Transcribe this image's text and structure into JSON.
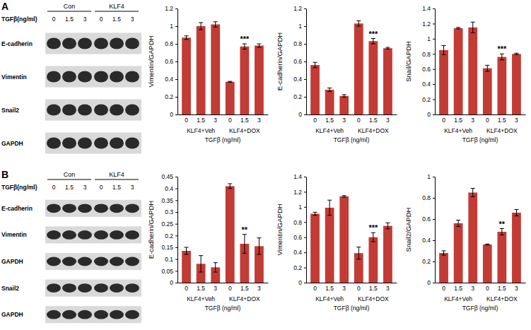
{
  "chart_data": [
    {
      "type": "bar",
      "y_label": "Vimentin/GAPDH",
      "x_label": "TGFβ (ng/ml)",
      "categories": [
        "0",
        "1.5",
        "3",
        "0",
        "1.5",
        "3"
      ],
      "group_labels": [
        "KLF4+Veh",
        "KLF4+DOX"
      ],
      "values": [
        0.87,
        1.0,
        1.02,
        0.37,
        0.77,
        0.78
      ],
      "errors": [
        0.02,
        0.04,
        0.03,
        0.005,
        0.03,
        0.02
      ],
      "color": "#c23b35",
      "ylim": [
        0,
        1.2
      ],
      "yticks": [
        0,
        0.2,
        0.4,
        0.6,
        0.8,
        1,
        1.2
      ],
      "grid": false,
      "annotations": [
        {
          "text": "***",
          "index": 4
        }
      ]
    },
    {
      "type": "bar",
      "y_label": "E-cadherin/GAPDH",
      "x_label": "TGFβ (ng/ml)",
      "categories": [
        "0",
        "1.5",
        "3",
        "0",
        "1.5",
        "3"
      ],
      "group_labels": [
        "KLF4+Veh",
        "KLF4+DOX"
      ],
      "values": [
        0.56,
        0.28,
        0.21,
        1.03,
        0.83,
        0.75
      ],
      "errors": [
        0.03,
        0.02,
        0.015,
        0.03,
        0.03,
        0.01
      ],
      "color": "#c23b35",
      "ylim": [
        0,
        1.2
      ],
      "yticks": [
        0,
        0.2,
        0.4,
        0.6,
        0.8,
        1,
        1.2
      ],
      "grid": false,
      "annotations": [
        {
          "text": "***",
          "index": 4
        }
      ]
    },
    {
      "type": "bar",
      "y_label": "Snail/GAPDH",
      "x_label": "TGFβ (ng/ml)",
      "categories": [
        "0",
        "1.5",
        "3",
        "0",
        "1.5",
        "3"
      ],
      "group_labels": [
        "KLF4+Veh",
        "KLF4+DOX"
      ],
      "values": [
        0.85,
        1.14,
        1.15,
        0.61,
        0.76,
        0.8
      ],
      "errors": [
        0.06,
        0.01,
        0.07,
        0.04,
        0.04,
        0.01
      ],
      "color": "#c23b35",
      "ylim": [
        0,
        1.4
      ],
      "yticks": [
        0,
        0.2,
        0.4,
        0.6,
        0.8,
        1,
        1.2,
        1.4
      ],
      "grid": false,
      "annotations": [
        {
          "text": "***",
          "index": 4
        }
      ]
    },
    {
      "type": "bar",
      "y_label": "E-cadherin/GAPDH",
      "x_label": "TGFβ (ng/ml)",
      "categories": [
        "0",
        "1.5",
        "3",
        "0",
        "1.5",
        "3"
      ],
      "group_labels": [
        "KLF4+Veh",
        "KLF4+DOX"
      ],
      "values": [
        0.135,
        0.08,
        0.065,
        0.41,
        0.165,
        0.155
      ],
      "errors": [
        0.015,
        0.035,
        0.02,
        0.01,
        0.04,
        0.035
      ],
      "color": "#c23b35",
      "ylim": [
        0,
        0.45
      ],
      "yticks": [
        0,
        0.05,
        0.1,
        0.15,
        0.2,
        0.25,
        0.3,
        0.35,
        0.4,
        0.45
      ],
      "grid": false,
      "annotations": [
        {
          "text": "**",
          "index": 4
        }
      ]
    },
    {
      "type": "bar",
      "y_label": "Vimentin/GAPDH",
      "x_label": "TGFβ (ng/ml)",
      "categories": [
        "0",
        "1.5",
        "3",
        "0",
        "1.5",
        "3"
      ],
      "group_labels": [
        "KLF4+Veh",
        "KLF4+DOX"
      ],
      "values": [
        0.91,
        0.99,
        1.14,
        0.39,
        0.6,
        0.75
      ],
      "errors": [
        0.02,
        0.1,
        0.01,
        0.08,
        0.06,
        0.04
      ],
      "color": "#c23b35",
      "ylim": [
        0,
        1.4
      ],
      "yticks": [
        0,
        0.2,
        0.4,
        0.6,
        0.8,
        1,
        1.2,
        1.4
      ],
      "grid": false,
      "annotations": [
        {
          "text": "***",
          "index": 4
        }
      ]
    },
    {
      "type": "bar",
      "y_label": "Snail2/GAPDH",
      "x_label": "TGFβ (ng/ml)",
      "categories": [
        "0",
        "1.5",
        "3",
        "0",
        "1.5",
        "3"
      ],
      "group_labels": [
        "KLF4+Veh",
        "KLF4+DOX"
      ],
      "values": [
        0.28,
        0.56,
        0.85,
        0.36,
        0.48,
        0.66
      ],
      "errors": [
        0.02,
        0.03,
        0.04,
        0.005,
        0.03,
        0.03
      ],
      "color": "#c23b35",
      "ylim": [
        0,
        1
      ],
      "yticks": [
        0,
        0.2,
        0.4,
        0.6,
        0.8,
        1
      ],
      "grid": false,
      "annotations": [
        {
          "text": "**",
          "index": 4
        }
      ]
    }
  ],
  "blots": [
    {
      "panel": "A",
      "groups": [
        "Con",
        "KLF4"
      ],
      "dose_label": "TGFβ(ng/ml)",
      "doses": [
        "0",
        "1.5",
        "3"
      ],
      "rows": [
        "E-cadherin",
        "Vimentin",
        "Snail2",
        "GAPDH"
      ]
    },
    {
      "panel": "B",
      "groups": [
        "Con",
        "KLF4"
      ],
      "dose_label": "TGFβ(ng/ml)",
      "doses": [
        "0",
        "1.5",
        "3"
      ],
      "rows": [
        "E-cadherin",
        "Vimentin",
        "GAPDH",
        "Snail2",
        "GAPDH"
      ]
    }
  ]
}
